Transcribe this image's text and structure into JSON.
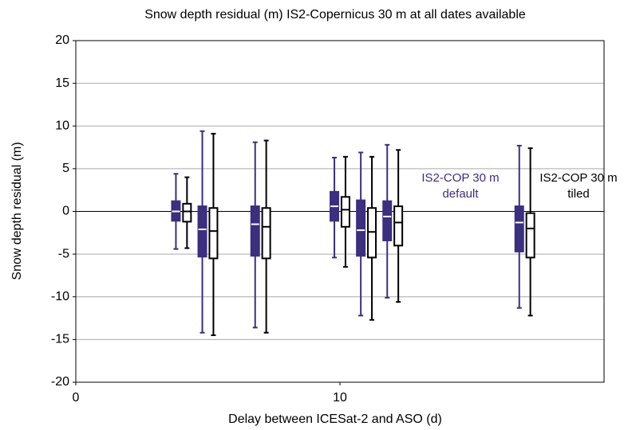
{
  "chart_data": {
    "type": "box",
    "title": "Snow depth residual (m) IS2-Copernicus 30 m at all dates available",
    "x_label": "Delay between ICESat-2 and ASO (d)",
    "y_label": "Snow depth residual (m)",
    "xlim": [
      0,
      20
    ],
    "xticks": [
      0,
      10
    ],
    "ylim": [
      -20,
      20
    ],
    "yticks": [
      -20,
      -15,
      -10,
      -5,
      0,
      5,
      10,
      15,
      20
    ],
    "grid": true,
    "series": [
      {
        "name": "IS2-COP 30 m default",
        "color": "#3b2f7f",
        "box_fill": "#3b2f7f",
        "median_color": "#ffffff",
        "x": [
          4,
          5,
          7,
          10,
          11,
          12,
          17
        ],
        "whisker_low": [
          -4.4,
          -14.2,
          -13.6,
          -5.4,
          -12.2,
          -10.1,
          -11.3
        ],
        "q1": [
          -1.1,
          -5.3,
          -5.2,
          -1.1,
          -5.2,
          -3.4,
          -4.7
        ],
        "median": [
          0,
          -2.1,
          -1.5,
          0.6,
          -2.2,
          -0.6,
          -1.3
        ],
        "q3": [
          1.2,
          0.6,
          0.6,
          2.3,
          1.3,
          1.2,
          0.6
        ],
        "whisker_high": [
          4.4,
          9.4,
          8.1,
          6.3,
          6.9,
          7.8,
          7.7
        ]
      },
      {
        "name": "IS2-COP 30 m tiled",
        "color": "#000000",
        "box_fill": "#ffffff",
        "median_color": "#000000",
        "x": [
          4,
          5,
          7,
          10,
          11,
          12,
          17
        ],
        "whisker_low": [
          -4.3,
          -14.5,
          -14.2,
          -6.5,
          -12.7,
          -10.6,
          -12.2
        ],
        "q1": [
          -1.2,
          -5.5,
          -5.5,
          -1.8,
          -5.4,
          -4.0,
          -5.4
        ],
        "median": [
          0,
          -2.3,
          -1.8,
          0.2,
          -2.4,
          -1.3,
          -2.0
        ],
        "q3": [
          0.9,
          0.4,
          0.4,
          1.7,
          0.4,
          0.6,
          -0.2
        ],
        "whisker_high": [
          4.0,
          9.1,
          8.3,
          6.4,
          6.4,
          7.2,
          7.4
        ]
      }
    ]
  }
}
